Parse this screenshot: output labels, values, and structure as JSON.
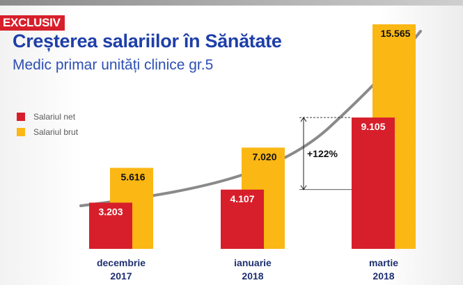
{
  "badge": "EXCLUSIV",
  "colors": {
    "net": "#d71f2b",
    "brut": "#fbb714",
    "title": "#1e3fa8",
    "curve": "#8a8a8a"
  },
  "chart_data": {
    "type": "bar",
    "title": "Creșterea salariilor în Sănătate",
    "subtitle": "Medic primar unități clinice gr.5",
    "categories": [
      {
        "line1": "decembrie",
        "line2": "2017"
      },
      {
        "line1": "ianuarie",
        "line2": "2018"
      },
      {
        "line1": "martie",
        "line2": "2018"
      }
    ],
    "series": [
      {
        "name": "Salariul net",
        "color": "#d71f2b",
        "values": [
          3203,
          4107,
          9105
        ],
        "labels": [
          "3.203",
          "4.107",
          "9.105"
        ]
      },
      {
        "name": "Salariul brut",
        "color": "#fbb714",
        "values": [
          5616,
          7020,
          15565
        ],
        "labels": [
          "5.616",
          "7.020",
          "15.565"
        ]
      }
    ],
    "annotation": {
      "text": "+122%",
      "from_value": 4107,
      "to_value": 9105
    },
    "trend_curve": true,
    "legend": "left",
    "grid": false
  }
}
